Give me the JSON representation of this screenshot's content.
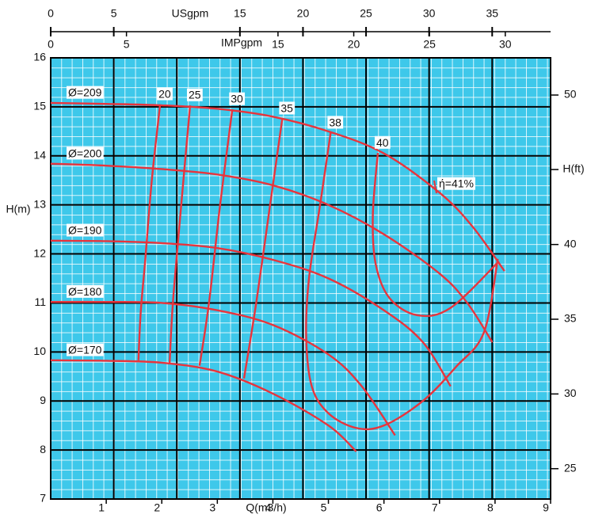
{
  "chart_data": {
    "type": "line",
    "xlabel": "Q(m3/h)",
    "ylabel": "H(m)",
    "y2label": "H(ft)",
    "x2label": "USgpm",
    "x3label": "IMPgpm",
    "xlim": [
      0,
      9
    ],
    "xticks": [
      1,
      2,
      3,
      4,
      5,
      6,
      7,
      8,
      9
    ],
    "ylim": [
      7,
      16
    ],
    "yticks": [
      7,
      8,
      9,
      10,
      11,
      12,
      13,
      14,
      15,
      16
    ],
    "y2lim": [
      22.97,
      52.49
    ],
    "y2ticks": [
      25,
      30,
      35,
      40,
      50
    ],
    "x2lim": [
      0,
      39.63
    ],
    "x2ticks": [
      0,
      5,
      15,
      20,
      25,
      30,
      35
    ],
    "x2grid": [
      5,
      10,
      15,
      20,
      25,
      30,
      35
    ],
    "x3lim": [
      0,
      32.99
    ],
    "x3ticks": [
      0,
      5,
      15,
      20,
      25,
      30
    ],
    "grid": true,
    "background": "#3ec8ea",
    "color": "#e8343c",
    "annotation": "ή=41%",
    "series": [
      {
        "name": "Ø=209",
        "x": [
          0,
          1,
          2,
          3,
          4,
          5,
          6,
          7,
          7.6,
          8.17
        ],
        "values": [
          15.08,
          15.06,
          15.03,
          14.96,
          14.8,
          14.5,
          14.05,
          13.25,
          12.55,
          11.65
        ]
      },
      {
        "name": "Ø=200",
        "x": [
          0,
          1,
          2,
          3,
          4,
          5,
          6,
          7,
          7.5,
          7.95
        ],
        "values": [
          13.84,
          13.8,
          13.73,
          13.62,
          13.4,
          13.0,
          12.4,
          11.6,
          11.0,
          10.2
        ]
      },
      {
        "name": "Ø=190",
        "x": [
          0,
          1,
          2,
          3,
          4,
          5,
          6,
          6.7,
          7.2
        ],
        "values": [
          12.27,
          12.26,
          12.22,
          12.12,
          11.88,
          11.5,
          10.85,
          10.2,
          9.3
        ]
      },
      {
        "name": "Ø=180",
        "x": [
          0,
          1,
          2,
          3,
          4,
          5,
          5.6,
          6.2
        ],
        "values": [
          11.02,
          11.02,
          11.0,
          10.85,
          10.55,
          9.95,
          9.3,
          8.3
        ]
      },
      {
        "name": "Ø=170",
        "x": [
          0,
          1,
          2,
          3,
          4,
          5,
          5.5
        ],
        "values": [
          9.83,
          9.82,
          9.78,
          9.6,
          9.15,
          8.5,
          7.97
        ]
      }
    ],
    "efficiency_series": [
      {
        "name": "20",
        "x": [
          1.97,
          1.82,
          1.7,
          1.62,
          1.58
        ],
        "values": [
          15.05,
          13.5,
          11.85,
          10.8,
          9.83
        ]
      },
      {
        "name": "25",
        "x": [
          2.51,
          2.35,
          2.2,
          2.14
        ],
        "values": [
          15.03,
          13.0,
          11.0,
          9.75
        ]
      },
      {
        "name": "30",
        "x": [
          3.27,
          3.05,
          2.85,
          2.68
        ],
        "values": [
          14.95,
          13.0,
          11.0,
          9.72
        ]
      },
      {
        "name": "35",
        "x": [
          4.17,
          3.95,
          3.7,
          3.48
        ],
        "values": [
          14.76,
          13.0,
          11.0,
          9.46
        ]
      },
      {
        "name": "38",
        "x": [
          5.04,
          4.85,
          4.65,
          4.6,
          4.7,
          5.0,
          5.5,
          6.0,
          6.7,
          7.3,
          7.8,
          8.05
        ],
        "values": [
          14.47,
          13.0,
          11.5,
          10.3,
          9.3,
          8.75,
          8.45,
          8.5,
          9.0,
          9.7,
          10.4,
          11.9
        ]
      },
      {
        "name": "40",
        "x": [
          5.89,
          5.8,
          5.85,
          6.1,
          6.6,
          7.2,
          8.07
        ],
        "values": [
          14.06,
          12.8,
          11.8,
          11.1,
          10.75,
          10.9,
          11.85
        ]
      }
    ]
  }
}
